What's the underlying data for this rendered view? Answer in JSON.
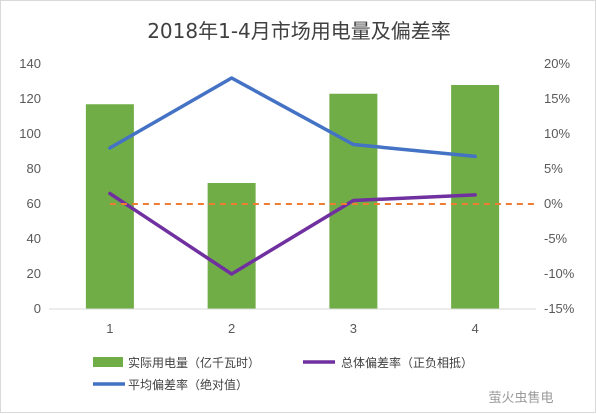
{
  "chart_data": {
    "type": "bar",
    "title": "2018年1-4月市场用电量及偏差率",
    "categories": [
      "1",
      "2",
      "3",
      "4"
    ],
    "y_left": {
      "ylim": [
        0,
        140
      ],
      "ticks": [
        "0",
        "20",
        "40",
        "60",
        "80",
        "100",
        "120",
        "140"
      ]
    },
    "y_right": {
      "ylim": [
        -15,
        20
      ],
      "unit": "%",
      "ticks": [
        "-15%",
        "-10%",
        "-5%",
        "0%",
        "5%",
        "10%",
        "15%",
        "20%"
      ]
    },
    "series": [
      {
        "name": "实际用电量（亿千瓦时）",
        "type": "bar",
        "axis": "left",
        "color": "#70ad47",
        "values": [
          117,
          72,
          123,
          128
        ]
      },
      {
        "name": "平均偏差率（绝对值）",
        "type": "line",
        "axis": "right",
        "color": "#4472c4",
        "values": [
          8.0,
          18.0,
          8.5,
          6.8
        ]
      },
      {
        "name": "总体偏差率（正负相抵）",
        "type": "line",
        "axis": "right",
        "color": "#7030a0",
        "values": [
          1.5,
          -10.0,
          0.5,
          1.3
        ]
      },
      {
        "name": "",
        "type": "reference-line",
        "axis": "right",
        "color": "#ed7d31",
        "style": "dashed",
        "value": 0
      }
    ],
    "legend": "bottom",
    "grid": false
  },
  "watermark": "萤火虫售电"
}
